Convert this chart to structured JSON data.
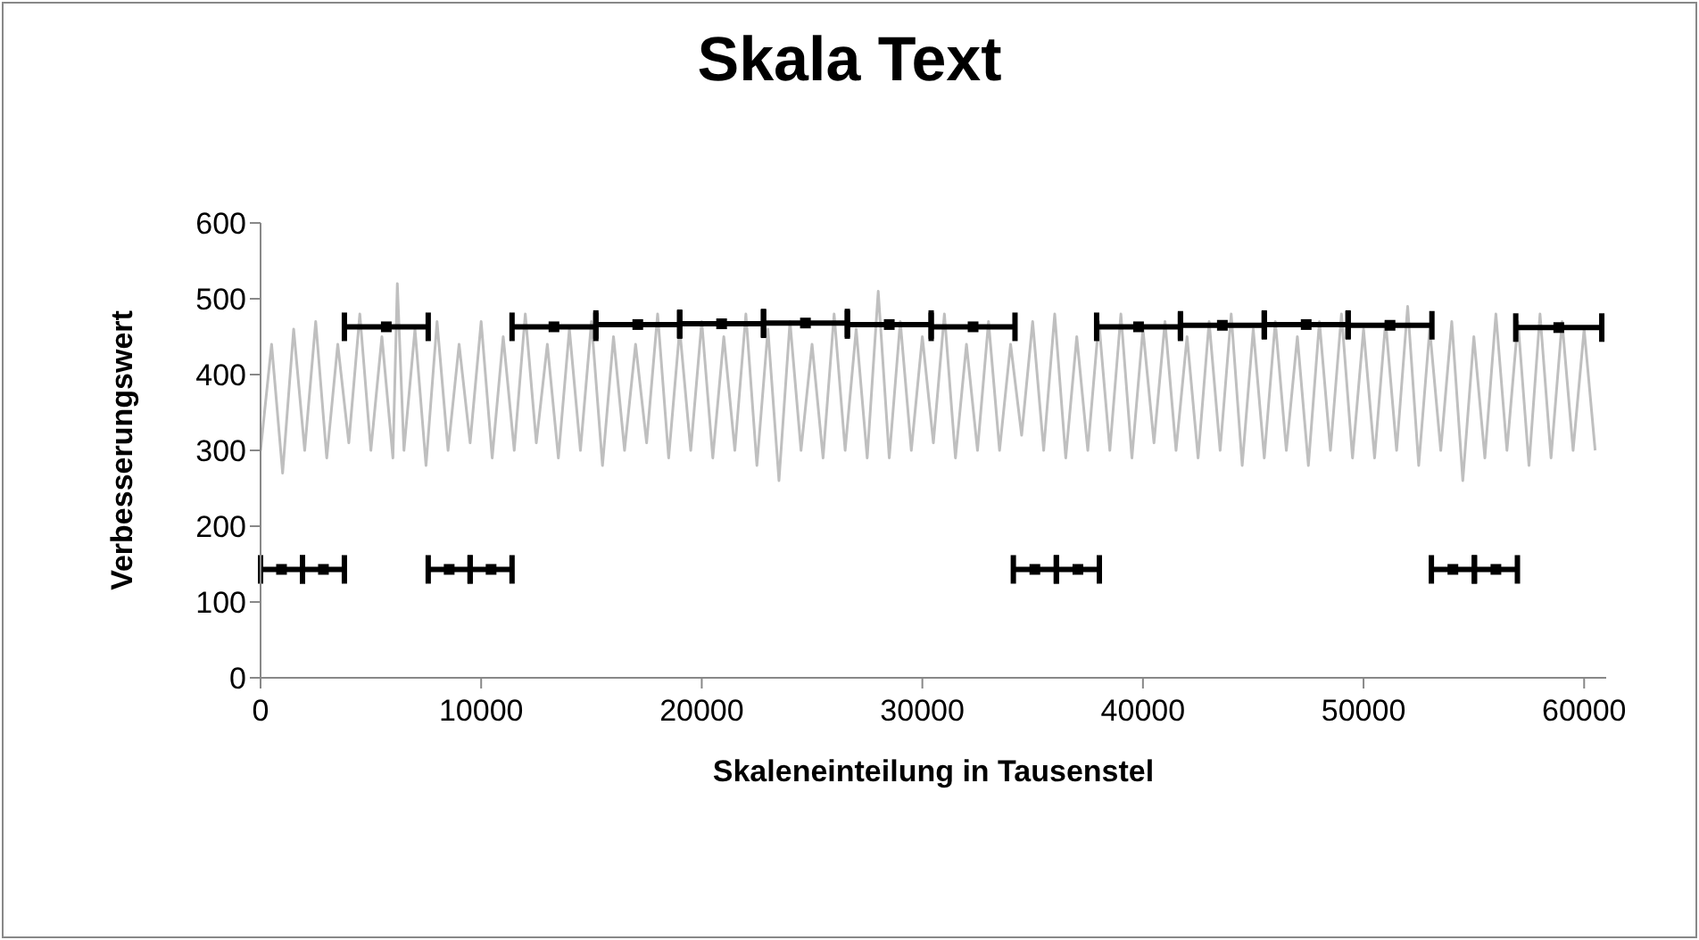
{
  "chart_data": {
    "type": "line",
    "title": "Skala Text",
    "xlabel": "Skaleneinteilung in Tausenstel",
    "ylabel": "Verbesserungswert",
    "xlim": [
      0,
      61000
    ],
    "xticks": [
      0,
      10000,
      20000,
      30000,
      40000,
      50000,
      60000
    ],
    "ylim": [
      0,
      600
    ],
    "yticks": [
      0,
      100,
      200,
      300,
      400,
      500,
      600
    ],
    "grid": false,
    "marker": "none",
    "line_style": "solid",
    "series": [
      {
        "color": "#bfbfbf",
        "x": [
          0,
          500,
          1000,
          1500,
          2000,
          2500,
          3000,
          3500,
          4000,
          4500,
          5000,
          5500,
          6000,
          6200,
          6500,
          7000,
          7500,
          8000,
          8500,
          9000,
          9500,
          10000,
          10500,
          11000,
          11500,
          12000,
          12500,
          13000,
          13500,
          14000,
          14500,
          15000,
          15500,
          16000,
          16500,
          17000,
          17500,
          18000,
          18500,
          19000,
          19500,
          20000,
          20500,
          21000,
          21500,
          22000,
          22500,
          23000,
          23500,
          24000,
          24500,
          25000,
          25500,
          26000,
          26500,
          27000,
          27500,
          28000,
          28500,
          29000,
          29500,
          30000,
          30500,
          31000,
          31500,
          32000,
          32500,
          33000,
          33500,
          34000,
          34500,
          35000,
          35500,
          36000,
          36500,
          37000,
          37500,
          38000,
          38500,
          39000,
          39500,
          40000,
          40500,
          41000,
          41500,
          42000,
          42500,
          43000,
          43500,
          44000,
          44500,
          45000,
          45500,
          46000,
          46500,
          47000,
          47500,
          48000,
          48500,
          49000,
          49500,
          50000,
          50500,
          51000,
          51500,
          52000,
          52500,
          53000,
          53500,
          54000,
          54500,
          55000,
          55500,
          56000,
          56500,
          57000,
          57500,
          58000,
          58500,
          59000,
          59500,
          60000,
          60500
        ],
        "values": [
          300,
          440,
          270,
          460,
          300,
          470,
          290,
          440,
          310,
          480,
          300,
          450,
          290,
          520,
          300,
          460,
          280,
          470,
          300,
          440,
          310,
          470,
          290,
          450,
          300,
          480,
          310,
          440,
          290,
          460,
          300,
          470,
          280,
          450,
          300,
          440,
          310,
          480,
          290,
          460,
          300,
          470,
          290,
          450,
          300,
          480,
          280,
          460,
          260,
          470,
          300,
          440,
          290,
          480,
          300,
          460,
          290,
          510,
          290,
          470,
          300,
          450,
          310,
          480,
          290,
          440,
          300,
          470,
          300,
          440,
          320,
          470,
          300,
          480,
          290,
          450,
          300,
          470,
          300,
          480,
          290,
          460,
          310,
          470,
          300,
          450,
          290,
          470,
          300,
          480,
          280,
          460,
          290,
          470,
          300,
          450,
          280,
          470,
          300,
          480,
          290,
          460,
          290,
          470,
          300,
          490,
          280,
          460,
          300,
          470,
          260,
          450,
          290,
          480,
          300,
          470,
          280,
          480,
          290,
          470,
          300,
          460,
          300
        ]
      },
      {
        "type": "scatter",
        "marker": "square",
        "color": "#000000",
        "x": [
          5700,
          13300,
          17100,
          20900,
          24700,
          28500,
          32300,
          39800,
          43600,
          47400,
          51200,
          58850
        ],
        "values": [
          463,
          463,
          466,
          467,
          468,
          466,
          463,
          463,
          465,
          466,
          465,
          462
        ],
        "xerrors": [
          1900,
          1900,
          1900,
          1900,
          1900,
          1900,
          1900,
          1900,
          1900,
          1900,
          1900,
          1950
        ]
      },
      {
        "type": "scatter",
        "marker": "square",
        "color": "#000000",
        "x": [
          950,
          2850,
          8550,
          10450,
          35100,
          37050,
          54050,
          56000
        ],
        "values": [
          143,
          143,
          143,
          143,
          143,
          143,
          143,
          143
        ],
        "xerrors": [
          950,
          950,
          950,
          950,
          975,
          975,
          975,
          975
        ]
      }
    ]
  }
}
